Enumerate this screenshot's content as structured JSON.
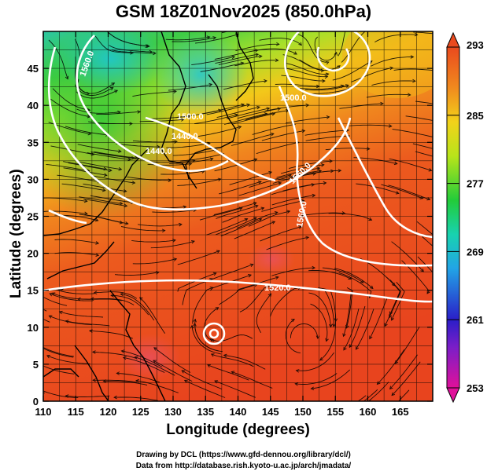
{
  "title": "GSM 18Z01Nov2025 (850.0hPa)",
  "axes": {
    "xlabel": "Longitude (degrees)",
    "ylabel": "Latitude  (degrees)",
    "xlim": [
      110,
      170
    ],
    "ylim": [
      0,
      50
    ],
    "xticks": [
      "110",
      "115",
      "120",
      "125",
      "130",
      "135",
      "140",
      "145",
      "150",
      "155",
      "160",
      "165"
    ],
    "yticks": [
      "0",
      "5",
      "10",
      "15",
      "20",
      "25",
      "30",
      "35",
      "40",
      "45"
    ]
  },
  "colorbar": {
    "labels": [
      "293",
      "285",
      "277",
      "269",
      "261",
      "253"
    ],
    "range": [
      253,
      293
    ],
    "colors": [
      "#e0109a",
      "#3a22c8",
      "#22a4e6",
      "#18d29a",
      "#38c92a",
      "#c7e418",
      "#f3c81a",
      "#f08a1e",
      "#ea4a1e"
    ]
  },
  "contour_labels": [
    "1560.0",
    "1500.0",
    "1440.0",
    "1440.0",
    "1500.0",
    "1560.0",
    "1560.0",
    "1520.0"
  ],
  "credits": {
    "line1": "Drawing by DCL (https://www.gfd-dennou.org/library/dcl/)",
    "line2": "Data from http://database.rish.kyoto-u.ac.jp/arch/jmadata/"
  },
  "chart_data": {
    "type": "heatmap",
    "title": "GSM 18Z01Nov2025 (850.0hPa)",
    "xlabel": "Longitude (degrees)",
    "ylabel": "Latitude  (degrees)",
    "xlim": [
      110,
      170
    ],
    "ylim": [
      0,
      50
    ],
    "colorbar_range": [
      253,
      293
    ],
    "colorbar_ticks": [
      253,
      261,
      269,
      277,
      285,
      293
    ],
    "contour_levels": [
      1440,
      1500,
      1520,
      1560
    ],
    "grid": true,
    "overlays": [
      "temperature shading",
      "geopotential height contours",
      "wind streamlines",
      "coastlines"
    ]
  }
}
